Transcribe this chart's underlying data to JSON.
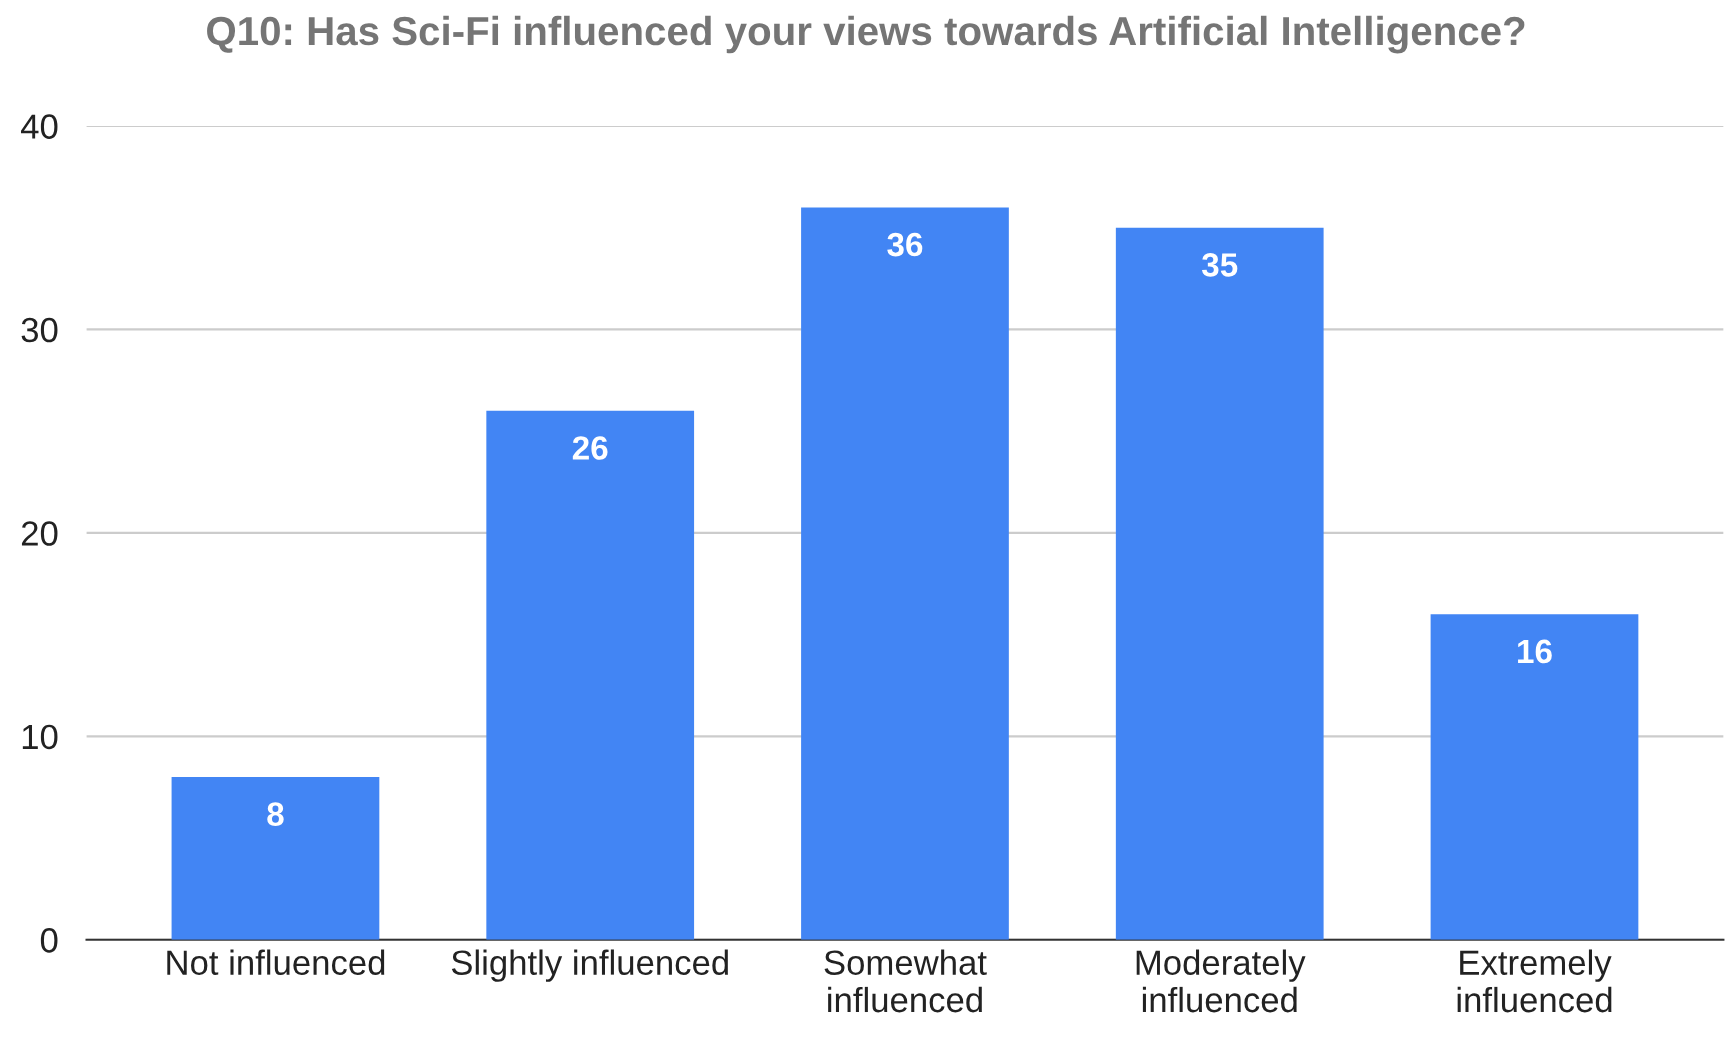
{
  "chart_data": {
    "type": "bar",
    "title": "Q10: Has Sci-Fi influenced your views towards Artificial Intelligence?",
    "categories": [
      "Not influenced",
      "Slightly influenced",
      "Somewhat\ninfluenced",
      "Moderately\ninfluenced",
      "Extremely\ninfluenced"
    ],
    "values": [
      8,
      26,
      36,
      35,
      16
    ],
    "color": "#4285f4",
    "ylim": [
      0,
      40
    ],
    "yticks": [
      0,
      10,
      20,
      30,
      40
    ],
    "grid": "y",
    "data_labels": true
  }
}
